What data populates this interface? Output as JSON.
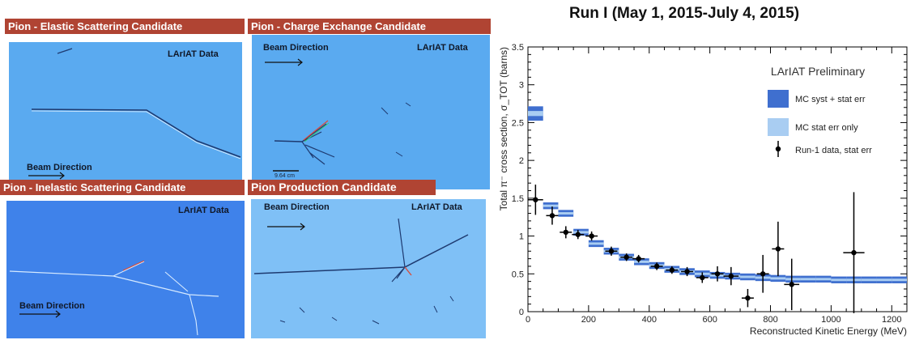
{
  "panels": {
    "elastic": {
      "title": "Pion - Elastic Scattering Candidate",
      "tag": "LArIAT Data",
      "beam": "Beam Direction"
    },
    "charge_exchange": {
      "title": "Pion - Charge Exchange Candidate",
      "tag": "LArIAT Data",
      "beam": "Beam Direction",
      "scale": "9.64 cm"
    },
    "inelastic": {
      "title": "Pion - Inelastic Scattering Candidate",
      "tag": "LArIAT Data",
      "beam": "Beam Direction"
    },
    "production": {
      "title": "Pion Production Candidate",
      "tag": "LArIAT Data",
      "beam": "Beam Direction"
    }
  },
  "chart_data": {
    "type": "scatter",
    "title": "Run I (May 1, 2015-July 4, 2015)",
    "xlabel": "Reconstructed Kinetic Energy (MeV)",
    "ylabel": "Total π⁻ cross section, σ_TOT (barns)",
    "xlim": [
      0,
      1250
    ],
    "ylim": [
      0,
      3.5
    ],
    "x_ticks": [
      0,
      200,
      400,
      600,
      800,
      1000,
      1200
    ],
    "y_ticks": [
      0,
      0.5,
      1,
      1.5,
      2,
      2.5,
      3,
      3.5
    ],
    "legend": {
      "title": "LArIAT Preliminary",
      "position": "top-right",
      "entries": [
        "MC syst + stat err",
        "MC stat err only",
        "Run-1 data, stat err"
      ]
    },
    "colors": {
      "mc_syst": "#3f6fcf",
      "mc_stat": "#a9cdf2",
      "data": "#000000"
    },
    "series": [
      {
        "name": "MC syst + stat err",
        "bin_width": 50,
        "bins": [
          {
            "x": 25,
            "y": 2.62
          },
          {
            "x": 75,
            "y": 1.4
          },
          {
            "x": 125,
            "y": 1.3
          },
          {
            "x": 175,
            "y": 1.05
          },
          {
            "x": 225,
            "y": 0.9
          },
          {
            "x": 275,
            "y": 0.8
          },
          {
            "x": 325,
            "y": 0.72
          },
          {
            "x": 375,
            "y": 0.66
          },
          {
            "x": 425,
            "y": 0.61
          },
          {
            "x": 475,
            "y": 0.56
          },
          {
            "x": 525,
            "y": 0.53
          },
          {
            "x": 575,
            "y": 0.5
          },
          {
            "x": 625,
            "y": 0.48
          },
          {
            "x": 675,
            "y": 0.47
          },
          {
            "x": 725,
            "y": 0.46
          },
          {
            "x": 775,
            "y": 0.45
          },
          {
            "x": 825,
            "y": 0.44
          },
          {
            "x": 875,
            "y": 0.43
          },
          {
            "x": 925,
            "y": 0.43
          },
          {
            "x": 975,
            "y": 0.43
          },
          {
            "x": 1025,
            "y": 0.42
          },
          {
            "x": 1075,
            "y": 0.42
          },
          {
            "x": 1125,
            "y": 0.42
          },
          {
            "x": 1175,
            "y": 0.42
          },
          {
            "x": 1225,
            "y": 0.42
          }
        ]
      },
      {
        "name": "Run-1 data, stat err",
        "points": [
          {
            "x": 25,
            "y": 1.48,
            "xerr": 25,
            "yerr": 0.2
          },
          {
            "x": 80,
            "y": 1.27,
            "xerr": 20,
            "yerr": 0.12
          },
          {
            "x": 125,
            "y": 1.05,
            "xerr": 20,
            "yerr": 0.08
          },
          {
            "x": 165,
            "y": 1.02,
            "xerr": 20,
            "yerr": 0.06
          },
          {
            "x": 210,
            "y": 1.0,
            "xerr": 20,
            "yerr": 0.06
          },
          {
            "x": 275,
            "y": 0.8,
            "xerr": 20,
            "yerr": 0.06
          },
          {
            "x": 325,
            "y": 0.72,
            "xerr": 20,
            "yerr": 0.05
          },
          {
            "x": 365,
            "y": 0.7,
            "xerr": 20,
            "yerr": 0.05
          },
          {
            "x": 425,
            "y": 0.6,
            "xerr": 20,
            "yerr": 0.05
          },
          {
            "x": 475,
            "y": 0.55,
            "xerr": 20,
            "yerr": 0.05
          },
          {
            "x": 525,
            "y": 0.53,
            "xerr": 20,
            "yerr": 0.06
          },
          {
            "x": 575,
            "y": 0.45,
            "xerr": 20,
            "yerr": 0.07
          },
          {
            "x": 625,
            "y": 0.5,
            "xerr": 20,
            "yerr": 0.1
          },
          {
            "x": 670,
            "y": 0.47,
            "xerr": 25,
            "yerr": 0.12
          },
          {
            "x": 725,
            "y": 0.18,
            "xerr": 20,
            "yerr": 0.12
          },
          {
            "x": 775,
            "y": 0.5,
            "xerr": 20,
            "yerr": 0.25
          },
          {
            "x": 825,
            "y": 0.83,
            "xerr": 20,
            "yerr": 0.36
          },
          {
            "x": 870,
            "y": 0.36,
            "xerr": 25,
            "yerr": 0.34
          },
          {
            "x": 1075,
            "y": 0.78,
            "xerr": 35,
            "yerr": 0.8
          }
        ]
      }
    ]
  }
}
